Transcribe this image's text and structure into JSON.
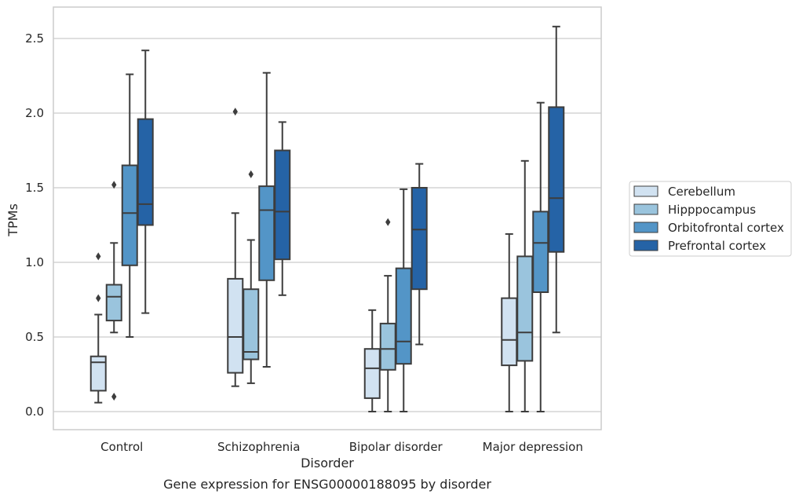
{
  "chart_data": {
    "type": "boxplot",
    "caption": "Gene expression for ENSG00000188095 by disorder",
    "xlabel": "Disorder",
    "ylabel": "TPMs",
    "ylim": [
      -0.12,
      2.71
    ],
    "yticks": [
      "0.0",
      "0.5",
      "1.0",
      "1.5",
      "2.0",
      "2.5"
    ],
    "grid": "horizontal",
    "legend_position": "right",
    "categories": [
      "Control",
      "Schizophrenia",
      "Bipolar disorder",
      "Major depression"
    ],
    "series": [
      {
        "name": "Cerebellum",
        "color": "#d1e2f1",
        "boxes": [
          {
            "whislo": 0.06,
            "q1": 0.14,
            "med": 0.33,
            "q3": 0.37,
            "whishi": 0.65,
            "fliers": [
              0.76,
              1.04
            ]
          },
          {
            "whislo": 0.17,
            "q1": 0.26,
            "med": 0.5,
            "q3": 0.89,
            "whishi": 1.33,
            "fliers": [
              2.01
            ]
          },
          {
            "whislo": 0.0,
            "q1": 0.09,
            "med": 0.29,
            "q3": 0.42,
            "whishi": 0.68,
            "fliers": []
          },
          {
            "whislo": 0.0,
            "q1": 0.31,
            "med": 0.48,
            "q3": 0.76,
            "whishi": 1.19,
            "fliers": []
          }
        ]
      },
      {
        "name": "Hipppocampus",
        "color": "#9ac4dd",
        "boxes": [
          {
            "whislo": 0.53,
            "q1": 0.61,
            "med": 0.77,
            "q3": 0.85,
            "whishi": 1.13,
            "fliers": [
              0.1,
              1.52
            ]
          },
          {
            "whislo": 0.19,
            "q1": 0.35,
            "med": 0.4,
            "q3": 0.82,
            "whishi": 1.15,
            "fliers": [
              1.59
            ]
          },
          {
            "whislo": 0.0,
            "q1": 0.28,
            "med": 0.42,
            "q3": 0.59,
            "whishi": 0.91,
            "fliers": [
              1.27
            ]
          },
          {
            "whislo": 0.0,
            "q1": 0.34,
            "med": 0.53,
            "q3": 1.04,
            "whishi": 1.68,
            "fliers": []
          }
        ]
      },
      {
        "name": "Orbitofrontal cortex",
        "color": "#5395c7",
        "boxes": [
          {
            "whislo": 0.5,
            "q1": 0.98,
            "med": 1.33,
            "q3": 1.65,
            "whishi": 2.26,
            "fliers": []
          },
          {
            "whislo": 0.3,
            "q1": 0.88,
            "med": 1.35,
            "q3": 1.51,
            "whishi": 2.27,
            "fliers": []
          },
          {
            "whislo": 0.0,
            "q1": 0.32,
            "med": 0.47,
            "q3": 0.96,
            "whishi": 1.49,
            "fliers": []
          },
          {
            "whislo": 0.0,
            "q1": 0.8,
            "med": 1.13,
            "q3": 1.34,
            "whishi": 2.07,
            "fliers": []
          }
        ]
      },
      {
        "name": "Prefrontal cortex",
        "color": "#2563a6",
        "boxes": [
          {
            "whislo": 0.66,
            "q1": 1.25,
            "med": 1.39,
            "q3": 1.96,
            "whishi": 2.42,
            "fliers": []
          },
          {
            "whislo": 0.78,
            "q1": 1.02,
            "med": 1.34,
            "q3": 1.75,
            "whishi": 1.94,
            "fliers": []
          },
          {
            "whislo": 0.45,
            "q1": 0.82,
            "med": 1.22,
            "q3": 1.5,
            "whishi": 1.66,
            "fliers": []
          },
          {
            "whislo": 0.53,
            "q1": 1.07,
            "med": 1.43,
            "q3": 2.04,
            "whishi": 2.58,
            "fliers": []
          }
        ]
      }
    ]
  }
}
